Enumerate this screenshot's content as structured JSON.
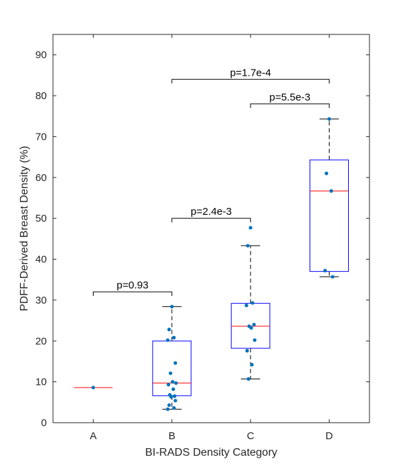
{
  "chart_data": {
    "type": "box",
    "xlabel": "BI-RADS Density Category",
    "ylabel": "PDFF-Derived Breast Density (%)",
    "ylim": [
      0,
      95
    ],
    "yticks": [
      0,
      10,
      20,
      30,
      40,
      50,
      60,
      70,
      80,
      90
    ],
    "categories": [
      "A",
      "B",
      "C",
      "D"
    ],
    "boxes": [
      {
        "category": "A",
        "min": 8.6,
        "q1": 8.6,
        "median": 8.6,
        "q3": 8.6,
        "max": 8.6
      },
      {
        "category": "B",
        "min": 3.3,
        "q1": 6.6,
        "median": 9.7,
        "q3": 20.0,
        "max": 28.4
      },
      {
        "category": "C",
        "min": 10.7,
        "q1": 18.2,
        "median": 23.6,
        "q3": 29.2,
        "max": 43.3
      },
      {
        "category": "D",
        "min": 35.7,
        "q1": 37.0,
        "median": 56.7,
        "q3": 64.3,
        "max": 74.3
      }
    ],
    "points": [
      {
        "category": "A",
        "values": [
          8.6
        ]
      },
      {
        "category": "B",
        "values": [
          28.4,
          22.8,
          20.8,
          20.2,
          14.6,
          12.1,
          10.0,
          9.7,
          9.3,
          8.2,
          6.8,
          6.5,
          6.3,
          5.4,
          4.3,
          3.6,
          3.3
        ]
      },
      {
        "category": "C",
        "values": [
          47.7,
          43.3,
          29.3,
          28.7,
          24.0,
          23.6,
          23.2,
          20.2,
          17.6,
          14.2,
          10.7
        ]
      },
      {
        "category": "D",
        "values": [
          74.3,
          61.0,
          56.7,
          37.2,
          35.7
        ]
      }
    ],
    "comparisons": [
      {
        "from": "A",
        "to": "B",
        "y": 32,
        "label": "p=0.93"
      },
      {
        "from": "B",
        "to": "C",
        "y": 50,
        "label": "p=2.4e-3"
      },
      {
        "from": "C",
        "to": "D",
        "y": 78,
        "label": "p=5.5e-3"
      },
      {
        "from": "B",
        "to": "D",
        "y": 84,
        "label": "p=1.7e-4"
      }
    ],
    "colors": {
      "box": "#0000ff",
      "median": "#ff0000",
      "points": "#0072bd",
      "whisker": "#000000",
      "axis": "#262626"
    }
  }
}
